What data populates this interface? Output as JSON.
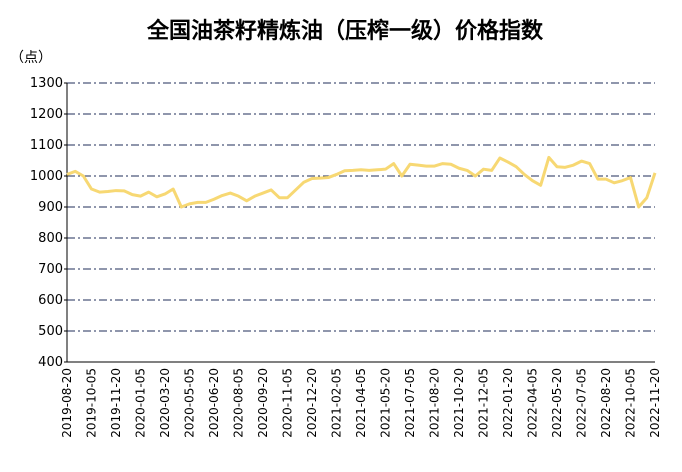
{
  "chart_data": {
    "type": "line",
    "title": "全国油茶籽精炼油（压榨一级）价格指数",
    "y_unit": "（点）",
    "categories": [
      "2019-08-20",
      null,
      null,
      "2019-10-05",
      null,
      null,
      "2019-11-20",
      null,
      null,
      "2020-01-05",
      null,
      null,
      "2020-03-20",
      null,
      null,
      "2020-05-05",
      null,
      null,
      "2020-06-20",
      null,
      null,
      "2020-08-05",
      null,
      null,
      "2020-09-20",
      null,
      null,
      "2020-11-05",
      null,
      null,
      "2020-12-20",
      null,
      null,
      "2021-02-05",
      null,
      null,
      "2021-04-05",
      null,
      null,
      "2021-05-20",
      null,
      null,
      "2021-07-05",
      null,
      null,
      "2021-08-20",
      null,
      null,
      "2021-10-20",
      null,
      null,
      "2021-12-05",
      null,
      null,
      "2022-01-20",
      null,
      null,
      "2022-04-05",
      null,
      null,
      "2022-05-20",
      null,
      null,
      "2022-07-05",
      null,
      null,
      "2022-08-20",
      null,
      null,
      "2022-10-05",
      null,
      null,
      "2022-11-20"
    ],
    "series": [
      {
        "name": "价格指数",
        "color": "#f7d873",
        "values": [
          1005,
          1015,
          1000,
          958,
          948,
          950,
          953,
          952,
          940,
          935,
          948,
          933,
          942,
          958,
          900,
          910,
          915,
          915,
          925,
          937,
          945,
          935,
          920,
          935,
          945,
          955,
          930,
          930,
          955,
          980,
          992,
          993,
          995,
          1005,
          1017,
          1018,
          1020,
          1018,
          1020,
          1022,
          1040,
          1000,
          1038,
          1035,
          1032,
          1032,
          1040,
          1038,
          1025,
          1018,
          1000,
          1022,
          1018,
          1058,
          1045,
          1030,
          1005,
          985,
          970,
          1060,
          1030,
          1028,
          1035,
          1048,
          1040,
          990,
          990,
          978,
          985,
          995,
          900,
          930,
          1010
        ]
      }
    ],
    "ylim": [
      400,
      1300
    ],
    "yticks": [
      400,
      500,
      600,
      700,
      800,
      900,
      1000,
      1100,
      1200,
      1300
    ],
    "grid": true
  }
}
